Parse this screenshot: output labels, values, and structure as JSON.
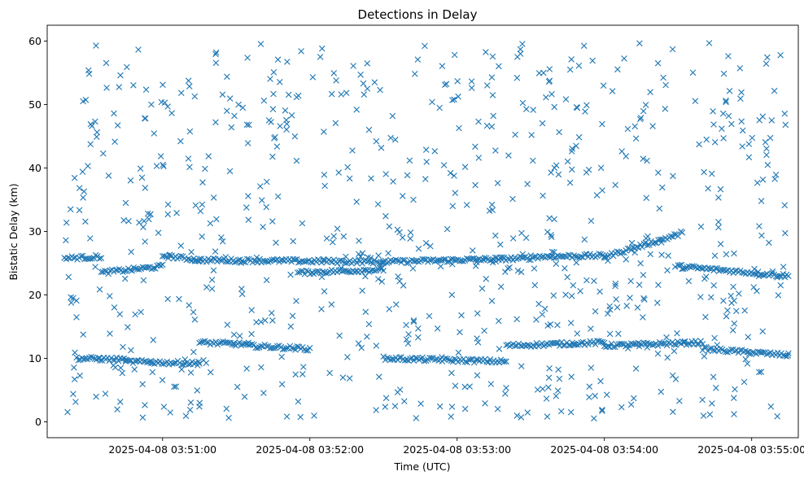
{
  "chart_data": {
    "type": "scatter",
    "title": "Detections in Delay",
    "xlabel": "Time (UTC)",
    "ylabel": "Bistatic Delay (km)",
    "x_axis_type": "time",
    "xlim": [
      "2025-04-08 03:50:13",
      "2025-04-08 03:55:19"
    ],
    "ylim": [
      -2.5,
      62.5
    ],
    "x_ticks": [
      "2025-04-08 03:51:00",
      "2025-04-08 03:52:00",
      "2025-04-08 03:53:00",
      "2025-04-08 03:54:00",
      "2025-04-08 03:55:00"
    ],
    "y_ticks": [
      0,
      10,
      20,
      30,
      40,
      50,
      60
    ],
    "marker": "x",
    "color": "#1f77b4",
    "grid": false,
    "legend": "none",
    "x_start": "2025-04-08 03:50:20",
    "x_end": "2025-04-08 03:55:15",
    "series": [
      {
        "description": "background clutter points (randomly distributed)",
        "count": 780,
        "y_range": [
          0.5,
          59.8
        ]
      },
      {
        "description": "track near 25 km",
        "segments": [
          {
            "t0": "2025-04-08 03:50:20",
            "t1": "2025-04-08 03:50:35",
            "y0": 25.8,
            "y1": 26.0
          },
          {
            "t0": "2025-04-08 03:50:35",
            "t1": "2025-04-08 03:51:00",
            "y0": 23.5,
            "y1": 24.5
          },
          {
            "t0": "2025-04-08 03:51:00",
            "t1": "2025-04-08 03:51:15",
            "y0": 26.2,
            "y1": 25.5
          },
          {
            "t0": "2025-04-08 03:51:15",
            "t1": "2025-04-08 03:52:30",
            "y0": 25.5,
            "y1": 25.2
          },
          {
            "t0": "2025-04-08 03:51:55",
            "t1": "2025-04-08 03:52:30",
            "y0": 23.5,
            "y1": 24.0
          },
          {
            "t0": "2025-04-08 03:52:30",
            "t1": "2025-04-08 03:53:30",
            "y0": 25.2,
            "y1": 25.8
          },
          {
            "t0": "2025-04-08 03:53:30",
            "t1": "2025-04-08 03:54:00",
            "y0": 26.0,
            "y1": 26.2
          },
          {
            "t0": "2025-04-08 03:54:00",
            "t1": "2025-04-08 03:54:30",
            "y0": 26.0,
            "y1": 29.5
          },
          {
            "t0": "2025-04-08 03:54:30",
            "t1": "2025-04-08 03:55:15",
            "y0": 24.5,
            "y1": 23.0
          }
        ]
      },
      {
        "description": "track near 11 km",
        "segments": [
          {
            "t0": "2025-04-08 03:50:25",
            "t1": "2025-04-08 03:50:45",
            "y0": 10.0,
            "y1": 9.8
          },
          {
            "t0": "2025-04-08 03:50:45",
            "t1": "2025-04-08 03:51:15",
            "y0": 9.5,
            "y1": 9.2
          },
          {
            "t0": "2025-04-08 03:51:15",
            "t1": "2025-04-08 03:51:35",
            "y0": 12.5,
            "y1": 12.2
          },
          {
            "t0": "2025-04-08 03:51:35",
            "t1": "2025-04-08 03:52:00",
            "y0": 12.0,
            "y1": 11.5
          },
          {
            "t0": "2025-04-08 03:52:30",
            "t1": "2025-04-08 03:53:20",
            "y0": 10.0,
            "y1": 9.5
          },
          {
            "t0": "2025-04-08 03:53:20",
            "t1": "2025-04-08 03:54:00",
            "y0": 12.0,
            "y1": 12.5
          },
          {
            "t0": "2025-04-08 03:54:00",
            "t1": "2025-04-08 03:54:40",
            "y0": 12.0,
            "y1": 12.5
          },
          {
            "t0": "2025-04-08 03:54:40",
            "t1": "2025-04-08 03:55:15",
            "y0": 11.5,
            "y1": 10.5
          }
        ]
      }
    ]
  }
}
